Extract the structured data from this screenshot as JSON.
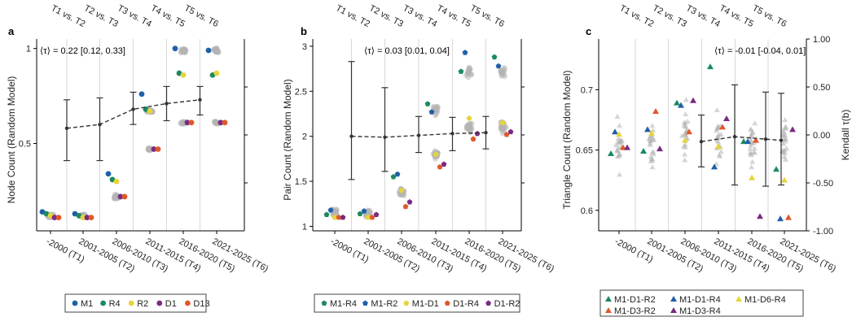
{
  "colors": {
    "M1": "#1f5fa8",
    "R4": "#1a8a5f",
    "R2": "#e6d43c",
    "D1": "#7a2a82",
    "D13": "#e0582a",
    "grey": "#b3b3b3",
    "grid": "#d9d9d9"
  },
  "chart_data": [
    {
      "type": "scatter",
      "panel": "a",
      "ylabel": "Node Count (Random Model)",
      "ylim": [
        0.04,
        1.05
      ],
      "yticks": [
        0.5,
        1
      ],
      "ytick_labels": [
        "0.5",
        "1"
      ],
      "categories": [
        "-2000 (T1)",
        "2001-2005 (T2)",
        "2006-2010 (T3)",
        "2011-2015 (T4)",
        "2016-2020 (T5)",
        "2021-2025 (T6)"
      ],
      "top_labels": [
        "T1 vs. T2",
        "T2 vs. T3",
        "T3 vs. T4",
        "T4 vs. T5",
        "T5 vs. T6"
      ],
      "annotation": "⟨τ⟩ = 0.22 [0.12, 0.33]",
      "series": [
        {
          "name": "M1",
          "color_key": "M1",
          "values": [
            0.14,
            0.13,
            0.34,
            0.76,
            1.0,
            0.99
          ]
        },
        {
          "name": "R4",
          "color_key": "R4",
          "values": [
            0.13,
            0.12,
            0.31,
            0.68,
            0.87,
            0.86
          ]
        },
        {
          "name": "R2",
          "color_key": "R2",
          "values": [
            0.12,
            0.11,
            0.3,
            0.67,
            0.86,
            0.87
          ]
        },
        {
          "name": "D1",
          "color_key": "D1",
          "values": [
            0.11,
            0.11,
            0.22,
            0.47,
            0.61,
            0.61
          ]
        },
        {
          "name": "D13",
          "color_key": "D13",
          "values": [
            0.11,
            0.11,
            0.22,
            0.47,
            0.61,
            0.61
          ]
        }
      ],
      "random_centers": [
        0.12,
        0.12,
        0.22,
        0.67,
        0.99,
        0.99
      ],
      "random_centers_b": [
        0.0,
        0.0,
        0.0,
        0.47,
        0.61,
        0.61
      ],
      "mean_tau": [
        0.58,
        0.6,
        0.68,
        0.71,
        0.73
      ],
      "tau_err_low": [
        0.41,
        0.41,
        0.6,
        0.62,
        0.65
      ],
      "tau_err_high": [
        0.73,
        0.74,
        0.77,
        0.8,
        0.8
      ],
      "legend": [
        "M1",
        "R4",
        "R2",
        "D1",
        "D13"
      ]
    },
    {
      "type": "scatter",
      "panel": "b",
      "ylabel": "Pair Count (Random Model)",
      "ylim": [
        0.95,
        3.08
      ],
      "yticks": [
        1,
        1.5,
        2,
        2.5,
        3
      ],
      "ytick_labels": [
        "1",
        "1.5",
        "2",
        "2.5",
        "3"
      ],
      "categories": [
        "-2000 (T1)",
        "2001-2005 (T2)",
        "2006-2010 (T3)",
        "2011-2015 (T4)",
        "2016-2020 (T5)",
        "2021-2025 (T6)"
      ],
      "top_labels": [
        "T1 vs. T2",
        "T2 vs. T3",
        "T3 vs. T4",
        "T4 vs. T5",
        "T5 vs. T6"
      ],
      "annotation": "⟨τ⟩ = 0.03 [0.01, 0.04]",
      "series": [
        {
          "name": "M1-R4",
          "color_key": "R4",
          "values": [
            1.13,
            1.14,
            1.55,
            2.36,
            2.72,
            2.88
          ]
        },
        {
          "name": "M1-R2",
          "color_key": "M1",
          "values": [
            1.18,
            1.17,
            1.58,
            2.27,
            2.93,
            2.78
          ]
        },
        {
          "name": "M1-D1",
          "color_key": "R2",
          "values": [
            1.1,
            1.1,
            1.4,
            1.8,
            2.2,
            2.15
          ]
        },
        {
          "name": "D1-R4",
          "color_key": "D13",
          "values": [
            1.1,
            1.1,
            1.22,
            1.66,
            1.97,
            2.02
          ]
        },
        {
          "name": "D1-R2",
          "color_key": "D1",
          "values": [
            1.1,
            1.13,
            1.27,
            1.69,
            2.03,
            2.05
          ]
        }
      ],
      "random_centers": [
        1.15,
        1.14,
        1.38,
        1.8,
        2.1,
        2.1
      ],
      "random_centers_b": [
        0.0,
        0.0,
        0.0,
        2.3,
        2.72,
        2.72
      ],
      "mean_tau": [
        2.0,
        1.99,
        2.01,
        2.03,
        2.04
      ],
      "tau_err_low": [
        1.52,
        1.61,
        1.82,
        1.84,
        1.86
      ],
      "tau_err_high": [
        2.83,
        2.54,
        2.22,
        2.21,
        2.22
      ],
      "legend": [
        "M1-R4",
        "M1-R2",
        "M1-D1",
        "D1-R4",
        "D1-R2"
      ]
    },
    {
      "type": "scatter",
      "panel": "c",
      "ylabel": "Triangle Count (Random Model)",
      "ylabel_right": "Kendall τ(b)",
      "ylim": [
        0.583,
        0.742
      ],
      "yticks": [
        0.6,
        0.65,
        0.7
      ],
      "ytick_labels": [
        "0.6",
        "0.65",
        "0.7"
      ],
      "y2lim": [
        -1.0,
        1.0
      ],
      "y2ticks": [
        1.0,
        0.5,
        0.0,
        -0.5,
        -1.0
      ],
      "y2tick_labels": [
        "1.00",
        "0.50",
        "0.00",
        "-0.50",
        "-1.00"
      ],
      "categories": [
        "-2000 (T1)",
        "2001-2005 (T2)",
        "2006-2010 (T3)",
        "2011-2015 (T4)",
        "2016-2020 (T5)",
        "2021-2025 (T6)"
      ],
      "top_labels": [
        "T1 vs. T2",
        "T2 vs. T3",
        "T3 vs. T4",
        "T4 vs. T5",
        "T5 vs. T6"
      ],
      "annotation": "⟨τ⟩ = -0.01 [-0.04, 0.01]",
      "series": [
        {
          "name": "M1-D1-R2",
          "color_key": "R4",
          "values": [
            0.647,
            0.649,
            0.689,
            0.719,
            0.657,
            0.634
          ]
        },
        {
          "name": "M1-D1-R4",
          "color_key": "M1",
          "values": [
            0.665,
            0.667,
            0.687,
            0.636,
            0.657,
            0.593
          ]
        },
        {
          "name": "M1-D6-R4",
          "color_key": "R2",
          "values": [
            0.663,
            0.664,
            0.658,
            0.653,
            0.627,
            0.625
          ]
        },
        {
          "name": "M1-D3-R2",
          "color_key": "D13",
          "values": [
            0.652,
            0.682,
            0.665,
            0.669,
            0.658,
            0.594
          ]
        },
        {
          "name": "M1-D3-R4",
          "color_key": "D1",
          "values": [
            0.652,
            0.651,
            0.691,
            0.676,
            0.595,
            0.667
          ]
        }
      ],
      "random_centers": [
        0.655,
        0.655,
        0.665,
        0.66,
        0.655,
        0.655
      ],
      "mean_tau": [
        -0.01,
        -0.01,
        -0.01,
        -0.01,
        -0.01
      ],
      "mean_pts": [
        0.657,
        0.661,
        0.659,
        0.658
      ],
      "err_low": [
        0.636,
        0.621,
        0.62,
        0.621
      ],
      "err_high": [
        0.679,
        0.704,
        0.698,
        0.697
      ],
      "legend": [
        "M1-D1-R2",
        "M1-D1-R4",
        "M1-D6-R4",
        "M1-D3-R2",
        "M1-D3-R4"
      ]
    }
  ]
}
